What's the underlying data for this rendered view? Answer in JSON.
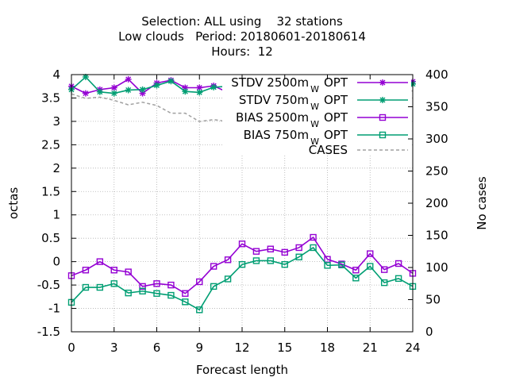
{
  "chart_data": {
    "type": "line",
    "title_lines": [
      "Selection: ALL using    32 stations",
      "Low clouds   Period: 20180601-20180614",
      "Hours:  12"
    ],
    "xlabel": "Forecast length",
    "ylabel": "octas",
    "y2label": "No cases",
    "xlim": [
      0,
      24
    ],
    "ylim": [
      -1.5,
      4
    ],
    "y2lim": [
      0,
      400
    ],
    "xticks": [
      0,
      3,
      6,
      9,
      12,
      15,
      18,
      21,
      24
    ],
    "yticks": [
      -1.5,
      -1,
      -0.5,
      0,
      0.5,
      1,
      1.5,
      2,
      2.5,
      3,
      3.5,
      4
    ],
    "ytick_labels": [
      "-1.5",
      "-1",
      "-0.5",
      "0",
      "0.5",
      "1",
      "1.5",
      "2",
      "2.5",
      "3",
      "3.5",
      "4"
    ],
    "y2ticks": [
      0,
      50,
      100,
      150,
      200,
      250,
      300,
      350,
      400
    ],
    "grid": true,
    "legend_position": "top-right",
    "x": [
      0,
      1,
      2,
      3,
      4,
      5,
      6,
      7,
      8,
      9,
      10,
      11,
      12,
      13,
      14,
      15,
      16,
      17,
      18,
      19,
      20,
      21,
      22,
      23,
      24
    ],
    "series": [
      {
        "name": "STDV 2500m",
        "name_sub": "W",
        "name_suffix": "OPT",
        "color": "#9400d3",
        "marker": "star",
        "axis": "y",
        "values": [
          3.75,
          3.6,
          3.68,
          3.72,
          3.9,
          3.6,
          3.82,
          3.88,
          3.72,
          3.72,
          3.76,
          3.62,
          3.38,
          3.7,
          3.56,
          3.6,
          3.54,
          3.62,
          3.58,
          3.75,
          3.7,
          3.77,
          3.77,
          3.76,
          3.85
        ]
      },
      {
        "name": "STDV 750m",
        "name_sub": "W",
        "name_suffix": "OPT",
        "color": "#009e73",
        "marker": "star",
        "axis": "y",
        "values": [
          3.68,
          3.95,
          3.63,
          3.6,
          3.67,
          3.68,
          3.77,
          3.86,
          3.64,
          3.62,
          3.73,
          3.75,
          3.6,
          3.67,
          3.6,
          3.42,
          3.6,
          3.45,
          3.55,
          3.8,
          3.72,
          3.42,
          3.43,
          3.38,
          3.8
        ]
      },
      {
        "name": "BIAS 2500m",
        "name_sub": "W",
        "name_suffix": "OPT",
        "color": "#9400d3",
        "marker": "square",
        "axis": "y",
        "values": [
          -0.3,
          -0.18,
          0.0,
          -0.18,
          -0.22,
          -0.53,
          -0.47,
          -0.5,
          -0.68,
          -0.43,
          -0.1,
          0.04,
          0.38,
          0.22,
          0.27,
          0.2,
          0.3,
          0.52,
          0.05,
          -0.05,
          -0.18,
          0.17,
          -0.17,
          -0.04,
          -0.25
        ]
      },
      {
        "name": "BIAS 750m",
        "name_sub": "W",
        "name_suffix": "OPT",
        "color": "#009e73",
        "marker": "square",
        "axis": "y",
        "values": [
          -0.87,
          -0.55,
          -0.55,
          -0.47,
          -0.67,
          -0.63,
          -0.68,
          -0.72,
          -0.86,
          -1.03,
          -0.53,
          -0.37,
          -0.06,
          0.02,
          0.02,
          -0.06,
          0.1,
          0.3,
          -0.08,
          -0.07,
          -0.35,
          -0.1,
          -0.45,
          -0.36,
          -0.53
        ]
      },
      {
        "name": "CASES",
        "color": "#a0a0a0",
        "marker": "none",
        "dashed": true,
        "axis": "y2",
        "values": [
          370,
          363,
          365,
          360,
          353,
          357,
          352,
          340,
          340,
          327,
          330,
          327,
          337,
          333,
          336,
          338,
          343,
          345,
          355,
          365,
          372,
          368,
          373,
          365,
          375
        ]
      }
    ]
  }
}
